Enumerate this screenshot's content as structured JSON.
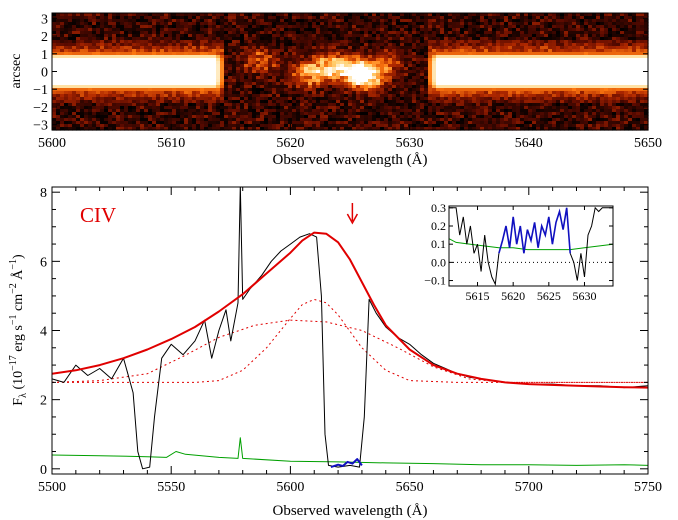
{
  "chart_data": [
    {
      "type": "heatmap",
      "description_panel": "2D spectrum",
      "ylabel": "arcsec",
      "xlabel": "Observed wavelength (Å)",
      "xlim": [
        5600,
        5650
      ],
      "ylim": [
        -3.3,
        3.3
      ],
      "xticks": [
        5600,
        5610,
        5620,
        5630,
        5640,
        5650
      ],
      "yticks": [
        3,
        2,
        1,
        0,
        -1,
        -2,
        -3
      ],
      "continuum_trace": {
        "left_end": 5614.5,
        "right_start": 5631.5,
        "half_width_arcsec": 0.9
      },
      "emission_blobs": [
        {
          "x": 5621.5,
          "y": -0.1,
          "strength": 0.8
        },
        {
          "x": 5623.5,
          "y": 0.3,
          "strength": 0.9
        },
        {
          "x": 5625.5,
          "y": 0.0,
          "strength": 1.0
        },
        {
          "x": 5626.5,
          "y": -0.4,
          "strength": 0.8
        },
        {
          "x": 5617.5,
          "y": 0.6,
          "strength": 0.5
        },
        {
          "x": 5628.0,
          "y": 0.4,
          "strength": 0.45
        }
      ],
      "colormap": [
        "#000000",
        "#5a0a00",
        "#b02800",
        "#ff7a10",
        "#ffd070",
        "#ffffff"
      ]
    },
    {
      "type": "line",
      "xlabel": "Observed wavelength (Å)",
      "ylabel_main": "F",
      "ylabel_sub": "λ",
      "ylabel_rest": "(10",
      "ylabel_exp1": "−17",
      "ylabel_mid": "erg s",
      "ylabel_exp2": "−1",
      "ylabel_cm": "cm",
      "ylabel_exp3": "−2",
      "ylabel_A": "Å",
      "ylabel_exp4": "−1",
      "ylabel_close": ")",
      "xlim": [
        5500,
        5750
      ],
      "ylim": [
        -0.15,
        8.15
      ],
      "xticks": [
        5500,
        5550,
        5600,
        5650,
        5700,
        5750
      ],
      "yticks": [
        0,
        2,
        4,
        6,
        8
      ],
      "label": "CIV",
      "marker_arrow_x": 5626,
      "series": [
        {
          "kind": "observed spectrum",
          "color": "#000000",
          "points": [
            [
              5500,
              2.6
            ],
            [
              5505,
              2.5
            ],
            [
              5510,
              3.0
            ],
            [
              5515,
              2.7
            ],
            [
              5520,
              2.9
            ],
            [
              5525,
              2.6
            ],
            [
              5530,
              3.2
            ],
            [
              5534,
              2.2
            ],
            [
              5536,
              0.5
            ],
            [
              5538,
              0.0
            ],
            [
              5541,
              0.05
            ],
            [
              5543,
              1.5
            ],
            [
              5546,
              3.2
            ],
            [
              5550,
              3.6
            ],
            [
              5555,
              3.3
            ],
            [
              5560,
              3.7
            ],
            [
              5564,
              4.3
            ],
            [
              5567,
              3.2
            ],
            [
              5570,
              4.0
            ],
            [
              5573,
              4.6
            ],
            [
              5575,
              3.7
            ],
            [
              5578,
              4.8
            ],
            [
              5579,
              8.2
            ],
            [
              5580,
              4.9
            ],
            [
              5583,
              5.2
            ],
            [
              5588,
              5.6
            ],
            [
              5592,
              6.0
            ],
            [
              5596,
              6.3
            ],
            [
              5600,
              6.5
            ],
            [
              5604,
              6.7
            ],
            [
              5608,
              6.8
            ],
            [
              5611,
              6.7
            ],
            [
              5613,
              5.0
            ],
            [
              5614.5,
              1.0
            ],
            [
              5616,
              0.1
            ],
            [
              5620,
              0.05
            ],
            [
              5625,
              0.1
            ],
            [
              5629,
              0.05
            ],
            [
              5631,
              1.5
            ],
            [
              5633,
              4.9
            ],
            [
              5636,
              4.5
            ],
            [
              5640,
              4.1
            ],
            [
              5645,
              3.8
            ],
            [
              5650,
              3.6
            ],
            [
              5655,
              3.3
            ],
            [
              5660,
              3.05
            ],
            [
              5665,
              2.9
            ],
            [
              5670,
              2.75
            ],
            [
              5675,
              2.65
            ],
            [
              5680,
              2.6
            ],
            [
              5690,
              2.5
            ],
            [
              5700,
              2.45
            ],
            [
              5710,
              2.45
            ],
            [
              5720,
              2.4
            ],
            [
              5730,
              2.4
            ],
            [
              5740,
              2.35
            ],
            [
              5750,
              2.4
            ]
          ]
        },
        {
          "kind": "absorbed region highlight",
          "color": "#1010c0",
          "points": [
            [
              5617,
              0.05
            ],
            [
              5620,
              0.12
            ],
            [
              5622,
              0.08
            ],
            [
              5624,
              0.2
            ],
            [
              5626,
              0.15
            ],
            [
              5628,
              0.28
            ],
            [
              5630,
              0.1
            ]
          ]
        },
        {
          "kind": "total model",
          "color": "#e00000",
          "points": [
            [
              5500,
              2.75
            ],
            [
              5510,
              2.85
            ],
            [
              5520,
              3.0
            ],
            [
              5530,
              3.2
            ],
            [
              5540,
              3.45
            ],
            [
              5550,
              3.75
            ],
            [
              5560,
              4.1
            ],
            [
              5570,
              4.55
            ],
            [
              5580,
              5.05
            ],
            [
              5590,
              5.65
            ],
            [
              5600,
              6.25
            ],
            [
              5605,
              6.6
            ],
            [
              5610,
              6.83
            ],
            [
              5615,
              6.8
            ],
            [
              5620,
              6.55
            ],
            [
              5625,
              6.05
            ],
            [
              5630,
              5.4
            ],
            [
              5635,
              4.75
            ],
            [
              5640,
              4.15
            ],
            [
              5650,
              3.45
            ],
            [
              5660,
              3.0
            ],
            [
              5670,
              2.75
            ],
            [
              5680,
              2.6
            ],
            [
              5690,
              2.5
            ],
            [
              5700,
              2.45
            ],
            [
              5720,
              2.4
            ],
            [
              5740,
              2.36
            ],
            [
              5750,
              2.35
            ]
          ]
        },
        {
          "kind": "narrow component (dotted)",
          "color": "#e00000",
          "dash": "2,3",
          "points": [
            [
              5500,
              2.5
            ],
            [
              5560,
              2.5
            ],
            [
              5570,
              2.55
            ],
            [
              5580,
              2.85
            ],
            [
              5590,
              3.5
            ],
            [
              5600,
              4.35
            ],
            [
              5605,
              4.75
            ],
            [
              5610,
              4.9
            ],
            [
              5615,
              4.8
            ],
            [
              5620,
              4.45
            ],
            [
              5630,
              3.5
            ],
            [
              5640,
              2.85
            ],
            [
              5650,
              2.55
            ],
            [
              5670,
              2.5
            ],
            [
              5750,
              2.5
            ]
          ]
        },
        {
          "kind": "broad component (dotted)",
          "color": "#e00000",
          "dash": "2,3",
          "points": [
            [
              5500,
              2.5
            ],
            [
              5520,
              2.55
            ],
            [
              5540,
              2.75
            ],
            [
              5555,
              3.25
            ],
            [
              5570,
              3.8
            ],
            [
              5585,
              4.15
            ],
            [
              5600,
              4.3
            ],
            [
              5615,
              4.25
            ],
            [
              5630,
              4.0
            ],
            [
              5645,
              3.5
            ],
            [
              5660,
              2.95
            ],
            [
              5675,
              2.6
            ],
            [
              5690,
              2.5
            ],
            [
              5750,
              2.5
            ]
          ]
        },
        {
          "kind": "error spectrum",
          "color": "#00a000",
          "points": [
            [
              5500,
              0.4
            ],
            [
              5520,
              0.38
            ],
            [
              5540,
              0.35
            ],
            [
              5548,
              0.33
            ],
            [
              5552,
              0.5
            ],
            [
              5556,
              0.42
            ],
            [
              5570,
              0.33
            ],
            [
              5578,
              0.3
            ],
            [
              5579,
              0.9
            ],
            [
              5580,
              0.3
            ],
            [
              5600,
              0.22
            ],
            [
              5620,
              0.2
            ],
            [
              5640,
              0.17
            ],
            [
              5660,
              0.15
            ],
            [
              5680,
              0.12
            ],
            [
              5700,
              0.12
            ],
            [
              5720,
              0.1
            ],
            [
              5740,
              0.12
            ],
            [
              5750,
              0.1
            ]
          ]
        },
        {
          "kind": "zero level",
          "color": "#000000",
          "dash": "1,3",
          "points": [
            [
              5500,
              0
            ],
            [
              5750,
              0
            ]
          ]
        }
      ]
    },
    {
      "type": "line",
      "inset": true,
      "xlim": [
        5611,
        5634
      ],
      "ylim": [
        -0.13,
        0.31
      ],
      "xticks": [
        5615,
        5620,
        5625,
        5630
      ],
      "yticks": [
        0.3,
        0.2,
        0.1,
        0.0,
        -0.1
      ],
      "ytick_labels": [
        "0.3",
        "0.2",
        "0.1",
        "0.0",
        "−0.1"
      ],
      "series": [
        {
          "kind": "observed (outside trough)",
          "color": "#000000",
          "points": [
            [
              5611,
              0.3
            ],
            [
              5612,
              0.3
            ],
            [
              5612.5,
              0.15
            ],
            [
              5613,
              0.25
            ],
            [
              5613.5,
              0.1
            ],
            [
              5614,
              0.2
            ],
            [
              5614.5,
              0.05
            ],
            [
              5615,
              0.1
            ],
            [
              5615.5,
              -0.05
            ],
            [
              5616,
              0.15
            ],
            [
              5616.5,
              0.0
            ],
            [
              5617,
              -0.08
            ],
            [
              5617.5,
              -0.12
            ],
            [
              5618,
              0.05
            ]
          ]
        },
        {
          "kind": "observed (trough)",
          "color": "#1010c0",
          "points": [
            [
              5618,
              0.05
            ],
            [
              5618.5,
              0.12
            ],
            [
              5619,
              0.2
            ],
            [
              5619.5,
              0.08
            ],
            [
              5620,
              0.25
            ],
            [
              5620.5,
              0.1
            ],
            [
              5621,
              0.2
            ],
            [
              5621.5,
              0.05
            ],
            [
              5622,
              0.18
            ],
            [
              5622.5,
              0.12
            ],
            [
              5623,
              0.22
            ],
            [
              5623.5,
              0.08
            ],
            [
              5624,
              0.2
            ],
            [
              5624.5,
              0.15
            ],
            [
              5625,
              0.25
            ],
            [
              5625.5,
              0.1
            ],
            [
              5626,
              0.22
            ],
            [
              5626.5,
              0.28
            ],
            [
              5627,
              0.18
            ],
            [
              5627.5,
              0.3
            ],
            [
              5628,
              0.05
            ]
          ]
        },
        {
          "kind": "observed (after trough)",
          "color": "#000000",
          "points": [
            [
              5628,
              0.05
            ],
            [
              5628.5,
              0.0
            ],
            [
              5629,
              -0.1
            ],
            [
              5629.5,
              0.05
            ],
            [
              5630,
              -0.08
            ],
            [
              5630.5,
              0.15
            ],
            [
              5631,
              0.2
            ],
            [
              5631.5,
              0.3
            ],
            [
              5632,
              0.28
            ],
            [
              5632.5,
              0.3
            ],
            [
              5634,
              0.3
            ]
          ]
        },
        {
          "kind": "error spectrum",
          "color": "#00a000",
          "points": [
            [
              5611,
              0.13
            ],
            [
              5612,
              0.11
            ],
            [
              5614,
              0.1
            ],
            [
              5616,
              0.09
            ],
            [
              5618,
              0.08
            ],
            [
              5620,
              0.08
            ],
            [
              5622,
              0.07
            ],
            [
              5624,
              0.07
            ],
            [
              5626,
              0.07
            ],
            [
              5628,
              0.07
            ],
            [
              5630,
              0.08
            ],
            [
              5632,
              0.09
            ],
            [
              5634,
              0.1
            ]
          ]
        },
        {
          "kind": "zero level",
          "color": "#000000",
          "dash": "1,3",
          "points": [
            [
              5611,
              0
            ],
            [
              5634,
              0
            ]
          ]
        }
      ]
    }
  ]
}
